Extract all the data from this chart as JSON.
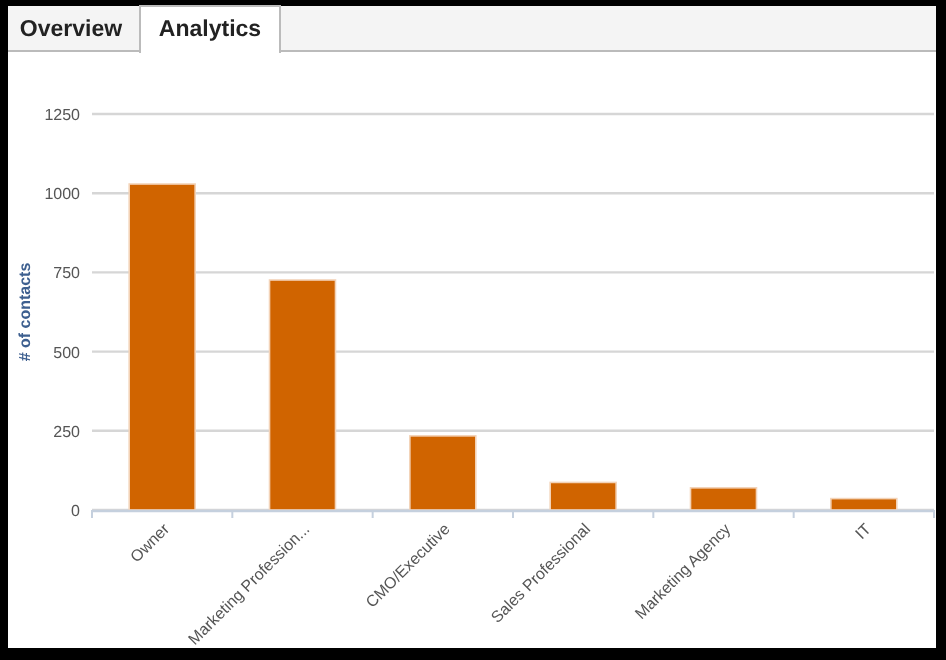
{
  "chart_data": {
    "type": "bar",
    "ylabel": "# of contacts",
    "categories": [
      "Owner",
      "Marketing Profession...",
      "CMO/Executive",
      "Sales Professional",
      "Marketing Agency",
      "IT"
    ],
    "values": [
      1029,
      726,
      234,
      87,
      70,
      36
    ],
    "color": "#d06400",
    "ylim": [
      0,
      1250
    ],
    "yticks": [
      0,
      250,
      500,
      750,
      1000,
      1250
    ],
    "grid": "y",
    "annotations": [
      "Overview",
      "Analytics"
    ]
  }
}
